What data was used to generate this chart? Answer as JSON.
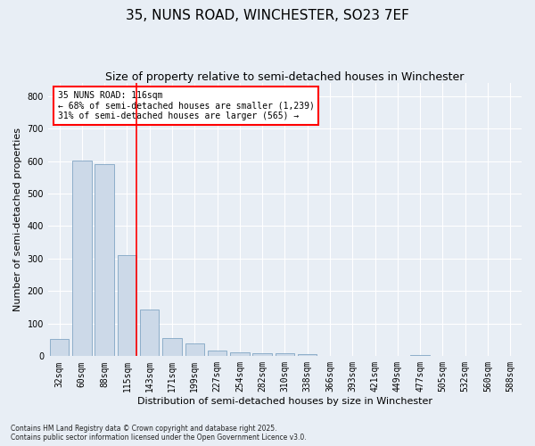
{
  "title": "35, NUNS ROAD, WINCHESTER, SO23 7EF",
  "subtitle": "Size of property relative to semi-detached houses in Winchester",
  "xlabel": "Distribution of semi-detached houses by size in Winchester",
  "ylabel": "Number of semi-detached properties",
  "categories": [
    "32sqm",
    "60sqm",
    "88sqm",
    "115sqm",
    "143sqm",
    "171sqm",
    "199sqm",
    "227sqm",
    "254sqm",
    "282sqm",
    "310sqm",
    "338sqm",
    "366sqm",
    "393sqm",
    "421sqm",
    "449sqm",
    "477sqm",
    "505sqm",
    "532sqm",
    "560sqm",
    "588sqm"
  ],
  "values": [
    52,
    601,
    590,
    312,
    143,
    57,
    40,
    16,
    12,
    9,
    10,
    6,
    0,
    0,
    0,
    0,
    5,
    0,
    0,
    0,
    0
  ],
  "bar_color": "#ccd9e8",
  "bar_edge_color": "#7099bb",
  "vline_x_index": 3,
  "vline_color": "red",
  "property_label": "35 NUNS ROAD: 116sqm",
  "smaller_label": "← 68% of semi-detached houses are smaller (1,239)",
  "larger_label": "31% of semi-detached houses are larger (565) →",
  "annotation_box_color": "red",
  "footnote1": "Contains HM Land Registry data © Crown copyright and database right 2025.",
  "footnote2": "Contains public sector information licensed under the Open Government Licence v3.0.",
  "ylim": [
    0,
    840
  ],
  "yticks": [
    0,
    100,
    200,
    300,
    400,
    500,
    600,
    700,
    800
  ],
  "bg_color": "#e8eef5",
  "plot_bg_color": "#e8eef5",
  "grid_color": "#ffffff",
  "title_fontsize": 11,
  "subtitle_fontsize": 9,
  "tick_fontsize": 7,
  "label_fontsize": 8,
  "annotation_fontsize": 7
}
